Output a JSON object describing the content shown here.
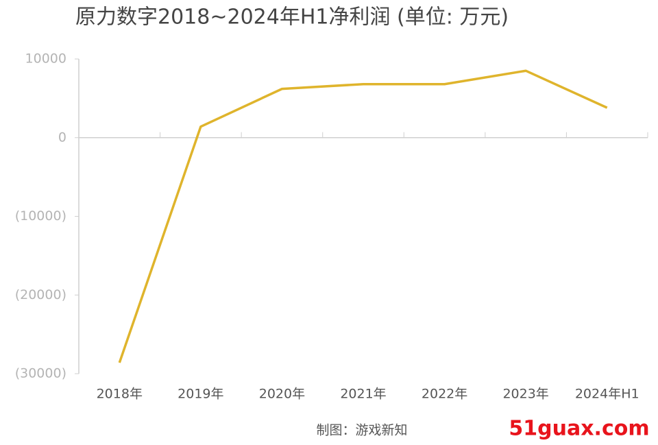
{
  "chart_data": {
    "type": "line",
    "title": "原力数字2018~2024年H1净利润 (单位: 万元)",
    "categories": [
      "2018年",
      "2019年",
      "2020年",
      "2021年",
      "2022年",
      "2023年",
      "2024年H1"
    ],
    "series": [
      {
        "name": "净利润",
        "color": "#dfb42c",
        "values": [
          -28600,
          1400,
          6200,
          6800,
          6800,
          8500,
          3800
        ]
      }
    ],
    "ylim": [
      -30000,
      10000
    ],
    "yticks": [
      10000,
      0,
      {
        "value": -10000,
        "label": "(10000)"
      },
      {
        "value": -20000,
        "label": "(20000)"
      },
      {
        "value": -30000,
        "label": "(30000)"
      }
    ],
    "source": "制图：游戏新知",
    "watermark": "51guax.com"
  }
}
